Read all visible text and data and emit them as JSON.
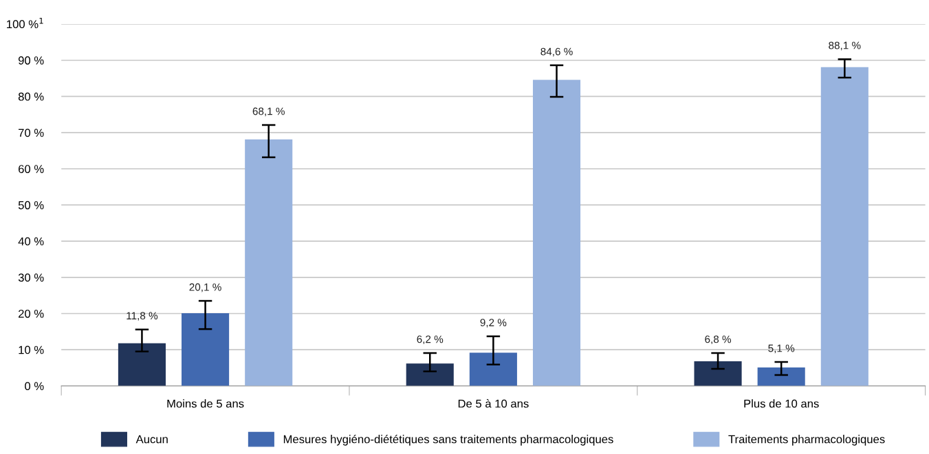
{
  "chart_data": {
    "type": "bar",
    "categories": [
      "Moins de 5 ans",
      "De 5 à 10 ans",
      "Plus de 10 ans"
    ],
    "series": [
      {
        "name": "Aucun",
        "color": "#22355a",
        "values": [
          11.8,
          6.2,
          6.8
        ],
        "errors": [
          [
            9.5,
            15.6
          ],
          [
            4.0,
            9.1
          ],
          [
            4.7,
            9.1
          ]
        ],
        "value_labels": [
          "11,8 %",
          "6,2 %",
          "6,8 %"
        ]
      },
      {
        "name": "Mesures hygiéno-diététiques sans traitements pharmacologiques",
        "color": "#4169b0",
        "values": [
          20.1,
          9.2,
          5.1
        ],
        "errors": [
          [
            15.7,
            23.5
          ],
          [
            5.9,
            13.7
          ],
          [
            3.0,
            6.6
          ]
        ],
        "value_labels": [
          "20,1 %",
          "9,2 %",
          "5,1 %"
        ]
      },
      {
        "name": "Traitements pharmacologiques",
        "color": "#98b3de",
        "values": [
          68.1,
          84.6,
          88.1
        ],
        "errors": [
          [
            63.2,
            72.1
          ],
          [
            79.9,
            88.6
          ],
          [
            85.2,
            90.3
          ]
        ],
        "value_labels": [
          "68,1 %",
          "84,6 %",
          "88,1 %"
        ]
      }
    ],
    "ylim": [
      0,
      100
    ],
    "yticks": [
      {
        "value": 0,
        "label": "0 %"
      },
      {
        "value": 10,
        "label": "10 %"
      },
      {
        "value": 20,
        "label": "20 %"
      },
      {
        "value": 30,
        "label": "30 %"
      },
      {
        "value": 40,
        "label": "40 %"
      },
      {
        "value": 50,
        "label": "50 %"
      },
      {
        "value": 60,
        "label": "60 %"
      },
      {
        "value": 70,
        "label": "70 %"
      },
      {
        "value": 80,
        "label": "80 %"
      },
      {
        "value": 90,
        "label": "90 %"
      },
      {
        "value": 100,
        "label": "100 %$^{1}$"
      }
    ],
    "grid": "y",
    "legend": "bottom"
  }
}
